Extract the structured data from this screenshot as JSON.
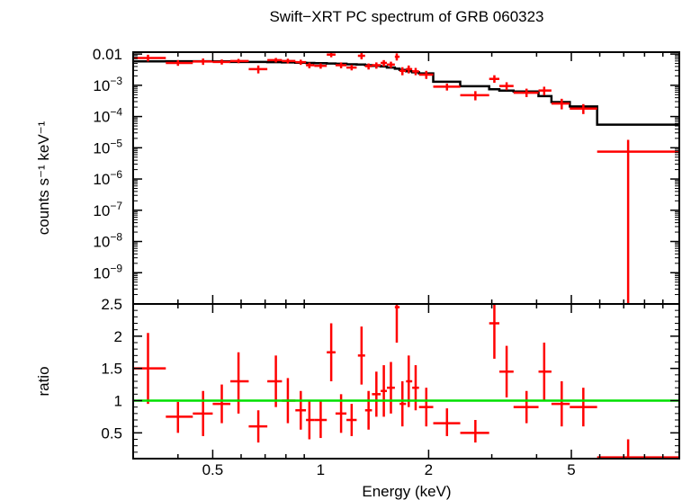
{
  "chart_data": [
    {
      "type": "scatter",
      "panel": "spectrum",
      "title": "Swift−XRT PC spectrum of GRB 060323",
      "ylabel": "counts s⁻¹ keV⁻¹",
      "xscale": "log",
      "yscale": "log",
      "xlim": [
        0.3,
        10
      ],
      "ylim": [
        1e-10,
        0.0115
      ],
      "x_ticks": [
        {
          "value": 0.5,
          "label": "0.5"
        },
        {
          "value": 1,
          "label": "1"
        },
        {
          "value": 2,
          "label": "2"
        },
        {
          "value": 5,
          "label": "5"
        }
      ],
      "y_ticks": [
        {
          "value": 0.01,
          "label": "0.01",
          "base": "0.01",
          "exp": ""
        },
        {
          "value": 0.001,
          "label": "10⁻³",
          "base": "10",
          "exp": "−3"
        },
        {
          "value": 0.0001,
          "label": "10⁻⁴",
          "base": "10",
          "exp": "−4"
        },
        {
          "value": 1e-05,
          "label": "10⁻⁵",
          "base": "10",
          "exp": "−5"
        },
        {
          "value": 1e-06,
          "label": "10⁻⁶",
          "base": "10",
          "exp": "−6"
        },
        {
          "value": 1e-07,
          "label": "10⁻⁷",
          "base": "10",
          "exp": "−7"
        },
        {
          "value": 1e-08,
          "label": "10⁻⁸",
          "base": "10",
          "exp": "−8"
        },
        {
          "value": 1e-09,
          "label": "10⁻⁹",
          "base": "10",
          "exp": "−9"
        }
      ],
      "series": [
        {
          "kind": "data",
          "color": "#ff0000",
          "points": [
            {
              "x": 0.33,
              "xlo": 0.3,
              "xhi": 0.37,
              "y": 0.0075,
              "ylo": 0.0058,
              "yhi": 0.0095
            },
            {
              "x": 0.4,
              "xlo": 0.37,
              "xhi": 0.44,
              "y": 0.0052,
              "ylo": 0.0042,
              "yhi": 0.0064
            },
            {
              "x": 0.47,
              "xlo": 0.44,
              "xhi": 0.5,
              "y": 0.0058,
              "ylo": 0.0045,
              "yhi": 0.0072
            },
            {
              "x": 0.53,
              "xlo": 0.5,
              "xhi": 0.56,
              "y": 0.0056,
              "ylo": 0.0046,
              "yhi": 0.0067
            },
            {
              "x": 0.59,
              "xlo": 0.56,
              "xhi": 0.63,
              "y": 0.006,
              "ylo": 0.0051,
              "yhi": 0.007
            },
            {
              "x": 0.67,
              "xlo": 0.63,
              "xhi": 0.71,
              "y": 0.0033,
              "ylo": 0.0024,
              "yhi": 0.0043
            },
            {
              "x": 0.75,
              "xlo": 0.71,
              "xhi": 0.78,
              "y": 0.0064,
              "ylo": 0.0054,
              "yhi": 0.0075
            },
            {
              "x": 0.81,
              "xlo": 0.78,
              "xhi": 0.85,
              "y": 0.006,
              "ylo": 0.005,
              "yhi": 0.0071
            },
            {
              "x": 0.88,
              "xlo": 0.85,
              "xhi": 0.91,
              "y": 0.0055,
              "ylo": 0.0045,
              "yhi": 0.0066
            },
            {
              "x": 0.93,
              "xlo": 0.91,
              "xhi": 0.96,
              "y": 0.0044,
              "ylo": 0.0035,
              "yhi": 0.0053
            },
            {
              "x": 1.0,
              "xlo": 0.96,
              "xhi": 1.04,
              "y": 0.0042,
              "ylo": 0.0034,
              "yhi": 0.005
            },
            {
              "x": 1.07,
              "xlo": 1.04,
              "xhi": 1.1,
              "y": 0.0096,
              "ylo": 0.0079,
              "yhi": 0.0115
            },
            {
              "x": 1.14,
              "xlo": 1.1,
              "xhi": 1.18,
              "y": 0.0044,
              "ylo": 0.0035,
              "yhi": 0.0054
            },
            {
              "x": 1.22,
              "xlo": 1.18,
              "xhi": 1.26,
              "y": 0.0037,
              "ylo": 0.003,
              "yhi": 0.0045
            },
            {
              "x": 1.3,
              "xlo": 1.27,
              "xhi": 1.33,
              "y": 0.0088,
              "ylo": 0.0068,
              "yhi": 0.0108
            },
            {
              "x": 1.36,
              "xlo": 1.33,
              "xhi": 1.39,
              "y": 0.0041,
              "ylo": 0.0032,
              "yhi": 0.005
            },
            {
              "x": 1.43,
              "xlo": 1.39,
              "xhi": 1.47,
              "y": 0.0044,
              "ylo": 0.0034,
              "yhi": 0.0054
            },
            {
              "x": 1.5,
              "xlo": 1.47,
              "xhi": 1.53,
              "y": 0.0052,
              "ylo": 0.004,
              "yhi": 0.0064
            },
            {
              "x": 1.57,
              "xlo": 1.53,
              "xhi": 1.61,
              "y": 0.0046,
              "ylo": 0.0036,
              "yhi": 0.0057
            },
            {
              "x": 1.63,
              "xlo": 1.61,
              "xhi": 1.66,
              "y": 0.0082,
              "ylo": 0.0062,
              "yhi": 0.0105
            },
            {
              "x": 1.69,
              "xlo": 1.66,
              "xhi": 1.73,
              "y": 0.0029,
              "ylo": 0.0021,
              "yhi": 0.0038
            },
            {
              "x": 1.76,
              "xlo": 1.73,
              "xhi": 1.8,
              "y": 0.0033,
              "ylo": 0.0024,
              "yhi": 0.0043
            },
            {
              "x": 1.84,
              "xlo": 1.8,
              "xhi": 1.88,
              "y": 0.0028,
              "ylo": 0.0021,
              "yhi": 0.0036
            },
            {
              "x": 1.97,
              "xlo": 1.88,
              "xhi": 2.06,
              "y": 0.0022,
              "ylo": 0.0016,
              "yhi": 0.0029
            },
            {
              "x": 2.25,
              "xlo": 2.06,
              "xhi": 2.45,
              "y": 0.0009,
              "ylo": 0.00068,
              "yhi": 0.00114
            },
            {
              "x": 2.7,
              "xlo": 2.45,
              "xhi": 2.95,
              "y": 0.00048,
              "ylo": 0.00033,
              "yhi": 0.00065
            },
            {
              "x": 3.05,
              "xlo": 2.95,
              "xhi": 3.15,
              "y": 0.0016,
              "ylo": 0.0012,
              "yhi": 0.0021
            },
            {
              "x": 3.3,
              "xlo": 3.15,
              "xhi": 3.45,
              "y": 0.00095,
              "ylo": 0.0007,
              "yhi": 0.00125
            },
            {
              "x": 3.75,
              "xlo": 3.45,
              "xhi": 4.05,
              "y": 0.00058,
              "ylo": 0.00042,
              "yhi": 0.00078
            },
            {
              "x": 4.2,
              "xlo": 4.05,
              "xhi": 4.4,
              "y": 0.00068,
              "ylo": 0.00048,
              "yhi": 0.0009
            },
            {
              "x": 4.7,
              "xlo": 4.4,
              "xhi": 4.95,
              "y": 0.00026,
              "ylo": 0.00017,
              "yhi": 0.00037
            },
            {
              "x": 5.4,
              "xlo": 4.95,
              "xhi": 5.9,
              "y": 0.00018,
              "ylo": 0.00012,
              "yhi": 0.00025
            },
            {
              "x": 7.2,
              "xlo": 5.9,
              "xhi": 10.0,
              "y": 7.5e-06,
              "ylo": 1e-10,
              "yhi": 1.8e-05
            }
          ]
        },
        {
          "kind": "model",
          "color": "#000000",
          "steps": [
            {
              "xlo": 0.3,
              "xhi": 0.37,
              "y": 0.0058
            },
            {
              "xlo": 0.37,
              "xhi": 0.44,
              "y": 0.0059
            },
            {
              "xlo": 0.44,
              "xhi": 0.5,
              "y": 0.0059
            },
            {
              "xlo": 0.5,
              "xhi": 0.56,
              "y": 0.0058
            },
            {
              "xlo": 0.56,
              "xhi": 0.63,
              "y": 0.0056
            },
            {
              "xlo": 0.63,
              "xhi": 0.71,
              "y": 0.0056
            },
            {
              "xlo": 0.71,
              "xhi": 0.78,
              "y": 0.0055
            },
            {
              "xlo": 0.78,
              "xhi": 0.85,
              "y": 0.0054
            },
            {
              "xlo": 0.85,
              "xhi": 0.91,
              "y": 0.0053
            },
            {
              "xlo": 0.91,
              "xhi": 0.96,
              "y": 0.0052
            },
            {
              "xlo": 0.96,
              "xhi": 1.04,
              "y": 0.0051
            },
            {
              "xlo": 1.04,
              "xhi": 1.1,
              "y": 0.005
            },
            {
              "xlo": 1.1,
              "xhi": 1.18,
              "y": 0.0049
            },
            {
              "xlo": 1.18,
              "xhi": 1.26,
              "y": 0.0047
            },
            {
              "xlo": 1.26,
              "xhi": 1.33,
              "y": 0.0046
            },
            {
              "xlo": 1.33,
              "xhi": 1.39,
              "y": 0.0044
            },
            {
              "xlo": 1.39,
              "xhi": 1.47,
              "y": 0.0042
            },
            {
              "xlo": 1.47,
              "xhi": 1.53,
              "y": 0.004
            },
            {
              "xlo": 1.53,
              "xhi": 1.61,
              "y": 0.0037
            },
            {
              "xlo": 1.61,
              "xhi": 1.66,
              "y": 0.0034
            },
            {
              "xlo": 1.66,
              "xhi": 1.73,
              "y": 0.0031
            },
            {
              "xlo": 1.73,
              "xhi": 1.8,
              "y": 0.0028
            },
            {
              "xlo": 1.8,
              "xhi": 1.88,
              "y": 0.0026
            },
            {
              "xlo": 1.88,
              "xhi": 2.06,
              "y": 0.0024
            },
            {
              "xlo": 2.06,
              "xhi": 2.45,
              "y": 0.0013
            },
            {
              "xlo": 2.45,
              "xhi": 2.95,
              "y": 0.00093
            },
            {
              "xlo": 2.95,
              "xhi": 3.15,
              "y": 0.00075
            },
            {
              "xlo": 3.15,
              "xhi": 3.45,
              "y": 0.00068
            },
            {
              "xlo": 3.45,
              "xhi": 4.05,
              "y": 0.00063
            },
            {
              "xlo": 4.05,
              "xhi": 4.4,
              "y": 0.00045
            },
            {
              "xlo": 4.4,
              "xhi": 4.95,
              "y": 0.00029
            },
            {
              "xlo": 4.95,
              "xhi": 5.9,
              "y": 0.00021
            },
            {
              "xlo": 5.9,
              "xhi": 10.0,
              "y": 5.5e-05
            }
          ]
        }
      ]
    },
    {
      "type": "scatter",
      "panel": "ratio",
      "xlabel": "Energy (keV)",
      "ylabel": "ratio",
      "xscale": "log",
      "yscale": "linear",
      "xlim": [
        0.3,
        10
      ],
      "ylim": [
        0.1,
        2.5
      ],
      "x_ticks": [
        {
          "value": 0.5,
          "label": "0.5"
        },
        {
          "value": 1,
          "label": "1"
        },
        {
          "value": 2,
          "label": "2"
        },
        {
          "value": 5,
          "label": "5"
        }
      ],
      "y_ticks": [
        {
          "value": 0.5,
          "label": "0.5"
        },
        {
          "value": 1,
          "label": "1"
        },
        {
          "value": 1.5,
          "label": "1.5"
        },
        {
          "value": 2,
          "label": "2"
        },
        {
          "value": 2.5,
          "label": "2.5"
        }
      ],
      "reference_line": {
        "y": 1,
        "color": "#00e000"
      },
      "series": [
        {
          "kind": "ratio",
          "color": "#ff0000",
          "points": [
            {
              "x": 0.33,
              "xlo": 0.3,
              "xhi": 0.37,
              "y": 1.5,
              "ylo": 0.95,
              "yhi": 2.05
            },
            {
              "x": 0.4,
              "xlo": 0.37,
              "xhi": 0.44,
              "y": 0.75,
              "ylo": 0.5,
              "yhi": 0.98
            },
            {
              "x": 0.47,
              "xlo": 0.44,
              "xhi": 0.5,
              "y": 0.8,
              "ylo": 0.45,
              "yhi": 1.15
            },
            {
              "x": 0.53,
              "xlo": 0.5,
              "xhi": 0.56,
              "y": 0.95,
              "ylo": 0.65,
              "yhi": 1.25
            },
            {
              "x": 0.59,
              "xlo": 0.56,
              "xhi": 0.63,
              "y": 1.3,
              "ylo": 0.8,
              "yhi": 1.75
            },
            {
              "x": 0.67,
              "xlo": 0.63,
              "xhi": 0.71,
              "y": 0.6,
              "ylo": 0.35,
              "yhi": 0.85
            },
            {
              "x": 0.75,
              "xlo": 0.71,
              "xhi": 0.78,
              "y": 1.3,
              "ylo": 0.9,
              "yhi": 1.7
            },
            {
              "x": 0.81,
              "xlo": 0.78,
              "xhi": 0.85,
              "y": 1.0,
              "ylo": 0.65,
              "yhi": 1.35
            },
            {
              "x": 0.88,
              "xlo": 0.85,
              "xhi": 0.91,
              "y": 0.85,
              "ylo": 0.55,
              "yhi": 1.15
            },
            {
              "x": 0.93,
              "xlo": 0.91,
              "xhi": 0.96,
              "y": 0.7,
              "ylo": 0.4,
              "yhi": 1.0
            },
            {
              "x": 1.0,
              "xlo": 0.96,
              "xhi": 1.04,
              "y": 0.7,
              "ylo": 0.42,
              "yhi": 1.0
            },
            {
              "x": 1.07,
              "xlo": 1.04,
              "xhi": 1.1,
              "y": 1.75,
              "ylo": 1.3,
              "yhi": 2.2
            },
            {
              "x": 1.14,
              "xlo": 1.1,
              "xhi": 1.18,
              "y": 0.8,
              "ylo": 0.5,
              "yhi": 1.1
            },
            {
              "x": 1.22,
              "xlo": 1.18,
              "xhi": 1.26,
              "y": 0.7,
              "ylo": 0.45,
              "yhi": 0.95
            },
            {
              "x": 1.3,
              "xlo": 1.27,
              "xhi": 1.33,
              "y": 1.7,
              "ylo": 1.25,
              "yhi": 2.15
            },
            {
              "x": 1.36,
              "xlo": 1.33,
              "xhi": 1.39,
              "y": 0.85,
              "ylo": 0.55,
              "yhi": 1.15
            },
            {
              "x": 1.43,
              "xlo": 1.39,
              "xhi": 1.47,
              "y": 1.1,
              "ylo": 0.75,
              "yhi": 1.45
            },
            {
              "x": 1.5,
              "xlo": 1.47,
              "xhi": 1.53,
              "y": 1.15,
              "ylo": 0.75,
              "yhi": 1.55
            },
            {
              "x": 1.57,
              "xlo": 1.53,
              "xhi": 1.61,
              "y": 1.2,
              "ylo": 0.8,
              "yhi": 1.6
            },
            {
              "x": 1.63,
              "xlo": 1.61,
              "xhi": 1.66,
              "y": 2.45,
              "ylo": 1.9,
              "yhi": 2.5
            },
            {
              "x": 1.69,
              "xlo": 1.66,
              "xhi": 1.73,
              "y": 0.95,
              "ylo": 0.6,
              "yhi": 1.3
            },
            {
              "x": 1.76,
              "xlo": 1.73,
              "xhi": 1.8,
              "y": 1.3,
              "ylo": 0.9,
              "yhi": 1.7
            },
            {
              "x": 1.84,
              "xlo": 1.8,
              "xhi": 1.88,
              "y": 1.2,
              "ylo": 0.85,
              "yhi": 1.55
            },
            {
              "x": 1.97,
              "xlo": 1.88,
              "xhi": 2.06,
              "y": 0.9,
              "ylo": 0.6,
              "yhi": 1.2
            },
            {
              "x": 2.25,
              "xlo": 2.06,
              "xhi": 2.45,
              "y": 0.65,
              "ylo": 0.45,
              "yhi": 0.88
            },
            {
              "x": 2.7,
              "xlo": 2.45,
              "xhi": 2.95,
              "y": 0.5,
              "ylo": 0.35,
              "yhi": 0.7
            },
            {
              "x": 3.05,
              "xlo": 2.95,
              "xhi": 3.15,
              "y": 2.2,
              "ylo": 1.65,
              "yhi": 2.5
            },
            {
              "x": 3.3,
              "xlo": 3.15,
              "xhi": 3.45,
              "y": 1.45,
              "ylo": 1.05,
              "yhi": 1.85
            },
            {
              "x": 3.75,
              "xlo": 3.45,
              "xhi": 4.05,
              "y": 0.9,
              "ylo": 0.65,
              "yhi": 1.15
            },
            {
              "x": 4.2,
              "xlo": 4.05,
              "xhi": 4.4,
              "y": 1.45,
              "ylo": 1.0,
              "yhi": 1.9
            },
            {
              "x": 4.7,
              "xlo": 4.4,
              "xhi": 4.95,
              "y": 0.95,
              "ylo": 0.6,
              "yhi": 1.3
            },
            {
              "x": 5.4,
              "xlo": 4.95,
              "xhi": 5.9,
              "y": 0.9,
              "ylo": 0.6,
              "yhi": 1.2
            },
            {
              "x": 7.2,
              "xlo": 5.9,
              "xhi": 10.0,
              "y": 0.12,
              "ylo": 0.1,
              "yhi": 0.4
            }
          ]
        }
      ]
    }
  ]
}
